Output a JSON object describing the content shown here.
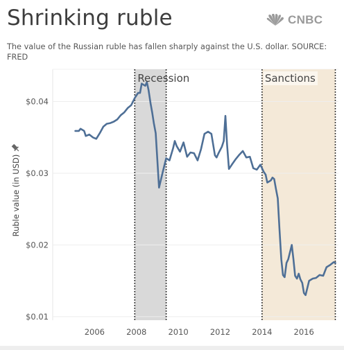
{
  "header": {
    "title": "Shrinking ruble",
    "subtitle": "The value of the Russian ruble has fallen sharply against the U.S. dollar. SOURCE: FRED",
    "logo_text": "CNBC",
    "logo_icon": "nbc-peacock-icon"
  },
  "colors": {
    "line": "#4e6f96",
    "recession_band": "#d9d9d9",
    "sanctions_band": "#f4e9d8",
    "text": "#555555",
    "grid": "#eeeeee"
  },
  "chart_data": {
    "type": "line",
    "title": "Shrinking ruble",
    "ylabel": "Ruble value (in USD)",
    "xlabel": "",
    "ylim": [
      0.0095,
      0.0445
    ],
    "xlim": [
      2004.0,
      2017.65
    ],
    "y_ticks": [
      0.01,
      0.02,
      0.03,
      0.04
    ],
    "y_tick_labels": [
      "$0.01",
      "$0.02",
      "$0.03",
      "$0.04"
    ],
    "x_ticks": [
      2006,
      2008,
      2010,
      2012,
      2014,
      2016
    ],
    "x_tick_labels": [
      "2006",
      "2008",
      "2010",
      "2012",
      "2014",
      "2016"
    ],
    "grid": "horizontal",
    "bands": [
      {
        "label": "Recession",
        "start": 2007.92,
        "end": 2009.42
      },
      {
        "label": "Sanctions",
        "start": 2014.0,
        "end": 2017.5
      }
    ],
    "series": [
      {
        "x": [
          2005.08,
          2005.25,
          2005.33,
          2005.5,
          2005.58,
          2005.75,
          2005.92,
          2006.08,
          2006.25,
          2006.42,
          2006.58,
          2006.75,
          2006.92,
          2007.08,
          2007.25,
          2007.42,
          2007.58,
          2007.75,
          2007.92,
          2008.08,
          2008.17,
          2008.25,
          2008.42,
          2008.5,
          2008.58,
          2008.67,
          2008.75,
          2008.83,
          2008.92,
          2009.08,
          2009.25,
          2009.42,
          2009.58,
          2009.75,
          2009.83,
          2009.92,
          2010.08,
          2010.25,
          2010.42,
          2010.58,
          2010.75,
          2010.92,
          2011.08,
          2011.25,
          2011.42,
          2011.58,
          2011.75,
          2011.83,
          2011.92,
          2012.08,
          2012.17,
          2012.25,
          2012.33,
          2012.42,
          2012.58,
          2012.75,
          2012.92,
          2013.08,
          2013.25,
          2013.42,
          2013.58,
          2013.75,
          2013.92,
          2014.08,
          2014.17,
          2014.25,
          2014.42,
          2014.5,
          2014.58,
          2014.67,
          2014.75,
          2014.83,
          2014.92,
          2015.0,
          2015.08,
          2015.17,
          2015.25,
          2015.42,
          2015.5,
          2015.58,
          2015.67,
          2015.75,
          2015.83,
          2015.92,
          2016.0,
          2016.08,
          2016.25,
          2016.42,
          2016.58,
          2016.75,
          2016.92,
          2017.08,
          2017.25,
          2017.42,
          2017.5
        ],
        "y": [
          0.0359,
          0.0359,
          0.0362,
          0.0359,
          0.0352,
          0.0354,
          0.035,
          0.0348,
          0.0356,
          0.0365,
          0.0369,
          0.037,
          0.0372,
          0.0375,
          0.0381,
          0.0385,
          0.0391,
          0.0395,
          0.0405,
          0.0412,
          0.0412,
          0.0425,
          0.0422,
          0.0427,
          0.0416,
          0.0398,
          0.0385,
          0.037,
          0.0356,
          0.028,
          0.0301,
          0.0321,
          0.0318,
          0.0335,
          0.0345,
          0.0338,
          0.033,
          0.0343,
          0.0323,
          0.0329,
          0.0328,
          0.0318,
          0.0333,
          0.0355,
          0.0358,
          0.0355,
          0.0325,
          0.0322,
          0.0328,
          0.0337,
          0.0345,
          0.038,
          0.034,
          0.0306,
          0.0313,
          0.032,
          0.0326,
          0.0331,
          0.0322,
          0.0323,
          0.0307,
          0.0305,
          0.0312,
          0.0302,
          0.0298,
          0.0287,
          0.029,
          0.0294,
          0.0292,
          0.0277,
          0.0265,
          0.0223,
          0.018,
          0.0158,
          0.0155,
          0.0175,
          0.018,
          0.02,
          0.018,
          0.0157,
          0.0153,
          0.016,
          0.0152,
          0.0147,
          0.0133,
          0.013,
          0.015,
          0.0153,
          0.0154,
          0.0158,
          0.0157,
          0.0169,
          0.0172,
          0.0176,
          0.0175
        ]
      }
    ]
  }
}
